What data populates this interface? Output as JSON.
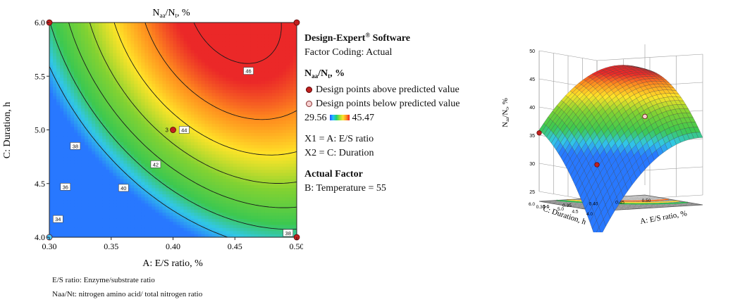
{
  "chart_data": [
    {
      "type": "contour",
      "title": "Naa/Nt, %",
      "xlabel": "A: E/S ratio, %",
      "ylabel": "C: Duration, h",
      "xlim": [
        0.3,
        0.5
      ],
      "ylim": [
        4.0,
        6.0
      ],
      "x_ticks": [
        "0.30",
        "0.35",
        "0.40",
        "0.45",
        "0.50"
      ],
      "y_ticks": [
        "4.0",
        "4.5",
        "5.0",
        "5.5",
        "6.0"
      ],
      "contour_levels": [
        34,
        36,
        38,
        40,
        42,
        44,
        46
      ],
      "contour_labels": [
        {
          "value": "34",
          "x": 0.307,
          "y": 4.17
        },
        {
          "value": "36",
          "x": 0.313,
          "y": 4.47
        },
        {
          "value": "38",
          "x": 0.321,
          "y": 4.85
        },
        {
          "value": "40",
          "x": 0.36,
          "y": 4.46
        },
        {
          "value": "42",
          "x": 0.386,
          "y": 4.68
        },
        {
          "value": "44",
          "x": 0.409,
          "y": 5.0
        },
        {
          "value": "46",
          "x": 0.461,
          "y": 5.55
        },
        {
          "value": "38",
          "x": 0.493,
          "y": 4.04
        }
      ],
      "design_points": [
        {
          "x": 0.3,
          "y": 6.0,
          "type": "above"
        },
        {
          "x": 0.5,
          "y": 6.0,
          "type": "above"
        },
        {
          "x": 0.3,
          "y": 4.0,
          "type": "below"
        },
        {
          "x": 0.5,
          "y": 4.0,
          "type": "above"
        },
        {
          "x": 0.4,
          "y": 5.0,
          "type": "above",
          "label": "3"
        }
      ],
      "color_scale": {
        "min": "29.56",
        "max": "45.47"
      }
    },
    {
      "type": "surface3d",
      "zlabel": "Naa/Nt, %",
      "xlabel": "A: E/S ratio, %",
      "ylabel": "C: Duration, h",
      "z_ticks": [
        "25",
        "30",
        "35",
        "40",
        "45",
        "50"
      ],
      "x_ticks": [
        "0.30",
        "0.35",
        "0.40",
        "0.45",
        "0.50"
      ],
      "y_ticks": [
        "4.0",
        "4.5",
        "5.0",
        "5.5",
        "6.0"
      ],
      "zlim": [
        25,
        50
      ]
    }
  ],
  "legend": {
    "software": "Design-Expert",
    "software_mark": "®",
    "software_suffix": " Software",
    "coding": "Factor Coding: Actual",
    "response_main": "N",
    "response_sub1": "aa",
    "response_mid": "/N",
    "response_sub2": "t",
    "response_end": ", %",
    "above": "Design points above predicted value",
    "below": "Design points below predicted value",
    "scale_min": "29.56",
    "scale_max": "45.47",
    "x1": "X1 = A: E/S ratio",
    "x2": "X2 = C: Duration",
    "actual_factor_title": "Actual Factor",
    "actual_factor": "B: Temperature = 55"
  },
  "notes": [
    "E/S ratio: Enzyme/substrate ratio",
    "Naa/Nt: nitrogen amino acid/ total nitrogen ratio"
  ],
  "colors": {
    "blue": "#2255ff",
    "cyan": "#22c0ff",
    "green": "#20c04a",
    "yellow": "#ffe030",
    "orange": "#ff9020",
    "red": "#ee2e2e",
    "point_above": "#c0201f",
    "point_below": "#f6d0d0"
  }
}
